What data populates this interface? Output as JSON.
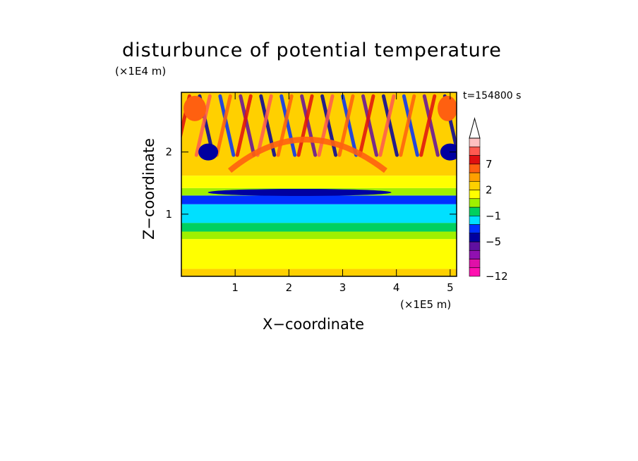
{
  "chart_data": {
    "type": "heatmap",
    "title": "disturbunce of potential temperature",
    "time_label": "t=154800 s",
    "xlabel": "X−coordinate",
    "ylabel": "Z−coordinate",
    "x_unit": "(×1E5 m)",
    "y_unit": "(×1E4 m)",
    "xlim": [
      0,
      5.12
    ],
    "ylim": [
      0,
      2.96
    ],
    "x_ticks": [
      1,
      2,
      3,
      4,
      5
    ],
    "x_tick_labels": [
      "1",
      "2",
      "3",
      "4",
      "5"
    ],
    "y_ticks": [
      1,
      2
    ],
    "y_tick_labels": [
      "1",
      "2"
    ],
    "colorbar": {
      "levels": [
        "-12",
        "-11",
        "-9",
        "-7",
        "-5",
        "-3",
        "-2",
        "-1",
        "0",
        "1",
        "2",
        "3",
        "5",
        "7",
        "8",
        "9"
      ],
      "colors": [
        "#ff10b0",
        "#e010a8",
        "#9010b0",
        "#6010a0",
        "#0000a0",
        "#0030ff",
        "#00e0ff",
        "#00d060",
        "#a0f000",
        "#ffff00",
        "#ffd000",
        "#ffa000",
        "#ff6010",
        "#e01010",
        "#ff5a50",
        "#ffc0c0"
      ],
      "tick_labels": [
        "7",
        "2",
        "−1",
        "−5",
        "−12"
      ],
      "tick_values": [
        7,
        2,
        -1,
        -5,
        -12
      ],
      "overflow": "top"
    },
    "bands": [
      {
        "z": [
          0.0,
          0.12
        ],
        "color_index": 10
      },
      {
        "z": [
          0.12,
          0.6
        ],
        "color_index": 9
      },
      {
        "z": [
          0.6,
          0.72
        ],
        "color_index": 8
      },
      {
        "z": [
          0.72,
          0.86
        ],
        "color_index": 7
      },
      {
        "z": [
          0.86,
          1.16
        ],
        "color_index": 6
      },
      {
        "z": [
          1.16,
          1.3
        ],
        "color_index": 5
      },
      {
        "z": [
          1.3,
          1.42
        ],
        "color_index": 8
      },
      {
        "z": [
          1.42,
          1.62
        ],
        "color_index": 9
      },
      {
        "z": [
          1.62,
          2.96
        ],
        "color_index": 10
      }
    ]
  }
}
